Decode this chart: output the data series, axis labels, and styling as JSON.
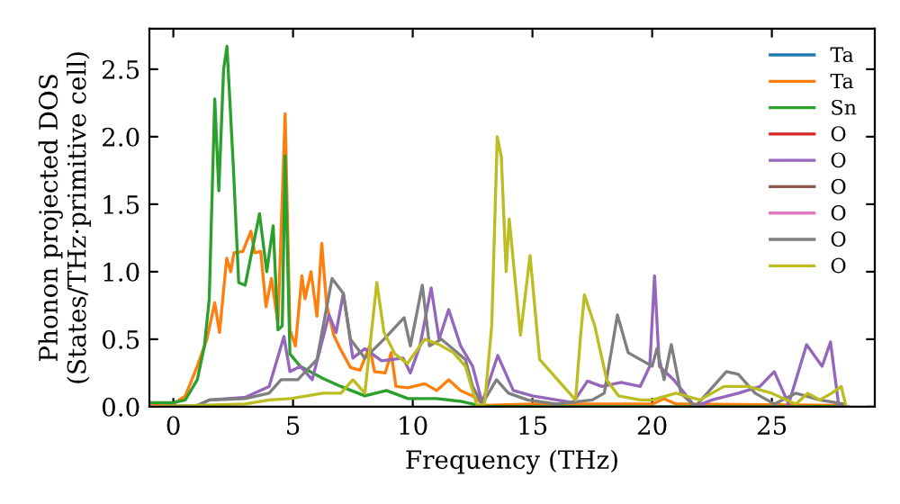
{
  "chart_data": {
    "type": "line",
    "xlabel": "Frequency (THz)",
    "ylabel": "Phonon projected DOS\n(States/THz·primitive cell)",
    "xlim": [
      -1,
      29.3
    ],
    "ylim": [
      0,
      2.8
    ],
    "xticks": [
      0,
      5,
      10,
      15,
      20,
      25
    ],
    "yticks": [
      {
        "value": 0,
        "label": "0.0"
      },
      {
        "value": 0.5,
        "label": "0.5"
      },
      {
        "value": 1,
        "label": "1.0"
      },
      {
        "value": 1.5,
        "label": "1.5"
      },
      {
        "value": 2,
        "label": "2.0"
      },
      {
        "value": 2.5,
        "label": "2.5"
      }
    ],
    "grid": false,
    "legend": "top right",
    "marker": "none",
    "line_style": "solid",
    "series": [
      {
        "name": "Ta",
        "color": "#1f77b4"
      },
      {
        "name": "Ta",
        "color": "#ff7f0e",
        "x": [
          -1,
          0,
          0.5,
          1,
          1.4,
          1.73,
          1.93,
          2.23,
          2.4,
          2.53,
          2.9,
          3.24,
          3.4,
          3.65,
          3.87,
          4.1,
          4.37,
          4.67,
          4.87,
          5.1,
          5.37,
          5.5,
          5.75,
          6.0,
          6.2,
          6.4,
          6.7,
          7.0,
          7.4,
          7.8,
          8.2,
          8.4,
          8.85,
          9.1,
          9.3,
          9.8,
          10.5,
          11,
          11.5,
          12,
          12.5,
          13,
          15,
          20,
          20.5,
          21,
          28
        ],
        "values": [
          0.02,
          0.02,
          0.08,
          0.3,
          0.5,
          0.77,
          0.55,
          1.1,
          1.0,
          1.14,
          1.15,
          1.3,
          1.14,
          1.15,
          0.74,
          0.95,
          0.62,
          2.17,
          0.57,
          0.45,
          0.97,
          0.8,
          1.0,
          0.67,
          1.21,
          0.76,
          0.53,
          0.42,
          0.29,
          0.27,
          0.45,
          0.26,
          0.25,
          0.4,
          0.15,
          0.14,
          0.17,
          0.12,
          0.2,
          0.12,
          0.08,
          0.01,
          0.02,
          0.02,
          0.06,
          0.02,
          0.01
        ]
      },
      {
        "name": "Sn",
        "color": "#2ca02c",
        "x": [
          -1,
          0,
          0.5,
          1,
          1.3,
          1.5,
          1.73,
          1.9,
          2.1,
          2.24,
          2.5,
          2.73,
          3.0,
          3.6,
          3.9,
          4.17,
          4.37,
          4.55,
          4.67,
          4.87,
          5.3,
          6.25,
          7,
          8,
          8.9,
          9.8,
          11,
          12,
          12.5,
          13,
          20,
          28
        ],
        "values": [
          0.03,
          0.03,
          0.05,
          0.2,
          0.45,
          0.8,
          2.28,
          1.6,
          2.5,
          2.67,
          1.8,
          0.92,
          0.9,
          1.43,
          1.0,
          1.34,
          0.57,
          0.6,
          1.86,
          0.39,
          0.3,
          0.21,
          0.15,
          0.08,
          0.12,
          0.06,
          0.06,
          0.04,
          0.02,
          0.0,
          0.0,
          0.0
        ]
      },
      {
        "name": "O",
        "color": "#d62728"
      },
      {
        "name": "O",
        "color": "#9467bd",
        "x": [
          -1,
          1,
          1.5,
          3,
          4,
          4.62,
          4.87,
          5.3,
          5.8,
          6.5,
          6.8,
          7.1,
          7.5,
          8,
          8.7,
          9.6,
          9.9,
          10.3,
          10.77,
          11.1,
          11.5,
          12,
          12.5,
          12.9,
          13.55,
          14.2,
          15,
          16.7,
          17.3,
          17.9,
          18.7,
          19.5,
          19.9,
          20.1,
          20.3,
          20.9,
          21.8,
          22.5,
          23.6,
          24.5,
          25.1,
          25.7,
          26.45,
          27.1,
          27.45,
          27.8,
          28.2
        ],
        "values": [
          0,
          0.01,
          0.05,
          0.07,
          0.15,
          0.52,
          0.26,
          0.3,
          0.2,
          0.68,
          0.55,
          0.84,
          0.36,
          0.43,
          0.34,
          0.36,
          0.25,
          0.45,
          0.88,
          0.5,
          0.72,
          0.45,
          0.3,
          0.03,
          0.38,
          0.12,
          0.08,
          0.03,
          0.19,
          0.15,
          0.18,
          0.15,
          0.3,
          0.97,
          0.3,
          0.2,
          0.0,
          0.05,
          0.1,
          0.15,
          0.26,
          0.02,
          0.46,
          0.3,
          0.48,
          0.0,
          0.0
        ]
      },
      {
        "name": "O",
        "color": "#8c564b"
      },
      {
        "name": "O",
        "color": "#e377c2"
      },
      {
        "name": "O",
        "color": "#7f7f7f",
        "x": [
          -1,
          1,
          1.5,
          3,
          4,
          4.5,
          5.2,
          6.0,
          6.63,
          7.1,
          7.4,
          8.0,
          8.8,
          9.64,
          9.9,
          10.4,
          10.7,
          11.2,
          12.2,
          12.5,
          12.9,
          13.5,
          14.0,
          14.8,
          16,
          17.5,
          18,
          18.55,
          19,
          20,
          20.2,
          20.5,
          20.8,
          21.2,
          21.8,
          23.1,
          23.6,
          24.3,
          25.1,
          26,
          27,
          28
        ],
        "values": [
          0,
          0.01,
          0.05,
          0.06,
          0.1,
          0.2,
          0.2,
          0.35,
          0.95,
          0.84,
          0.5,
          0.36,
          0.5,
          0.66,
          0.45,
          0.9,
          0.45,
          0.5,
          0.35,
          0.15,
          0.02,
          0.2,
          0.1,
          0.05,
          0.02,
          0.05,
          0.1,
          0.68,
          0.4,
          0.3,
          0.43,
          0.2,
          0.46,
          0.1,
          0.0,
          0.26,
          0.24,
          0.1,
          0.02,
          0.1,
          0.05,
          0.02
        ]
      },
      {
        "name": "O",
        "color": "#bcbd22",
        "x": [
          -1,
          3,
          4,
          4.9,
          6.25,
          7,
          7.5,
          8,
          8.5,
          8.8,
          9.26,
          9.77,
          10.5,
          11.1,
          11.7,
          12.2,
          12.7,
          13.0,
          13.3,
          13.53,
          13.7,
          13.9,
          14.03,
          14.5,
          14.9,
          15.3,
          16.8,
          17.0,
          17.17,
          17.6,
          18.1,
          18.6,
          19.5,
          20,
          21,
          22,
          23,
          24,
          25,
          26,
          26.5,
          27,
          27.5,
          27.9,
          28.1
        ],
        "values": [
          0,
          0.02,
          0.05,
          0.06,
          0.1,
          0.1,
          0.2,
          0.1,
          0.92,
          0.55,
          0.39,
          0.32,
          0.5,
          0.46,
          0.4,
          0.3,
          0.0,
          0.02,
          0.6,
          2.0,
          1.85,
          1.0,
          1.39,
          0.53,
          1.12,
          0.35,
          0.05,
          0.5,
          0.83,
          0.6,
          0.2,
          0.08,
          0.05,
          0.05,
          0.1,
          0.05,
          0.15,
          0.15,
          0.1,
          0.02,
          0.1,
          0.05,
          0.1,
          0.15,
          0.0
        ]
      }
    ]
  }
}
